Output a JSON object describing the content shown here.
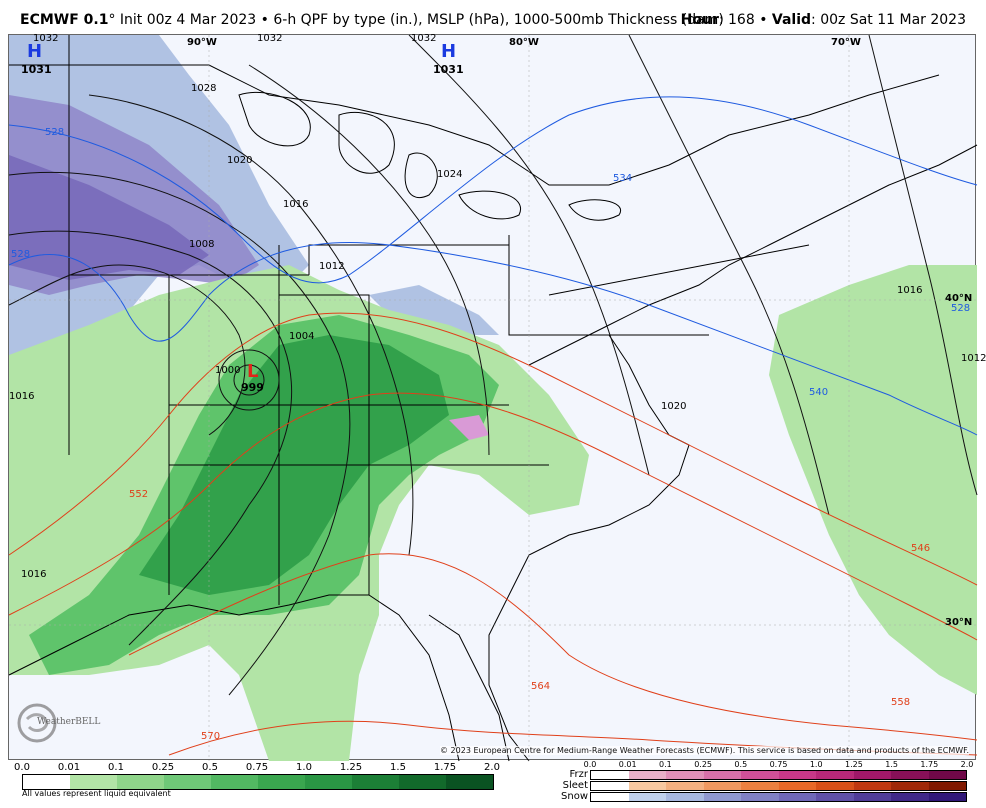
{
  "header": {
    "model": "ECMWF 0.1",
    "degree": "°",
    "description": " Init 00z 4 Mar 2023 • 6-h QPF by type (in.), MSLP (hPa), 1000-500mb Thickness (dam)",
    "hour_label": "Hour",
    "hour_value": ": 168 • ",
    "valid_label": "Valid",
    "valid_value": ": 00z Sat 11 Mar 2023"
  },
  "map": {
    "longitude_labels": [
      "90°W",
      "80°W",
      "70°W"
    ],
    "latitude_labels": [
      "40°N",
      "30°N"
    ],
    "highs": [
      {
        "symbol": "H",
        "pressure": "1031"
      },
      {
        "symbol": "H",
        "pressure": "1031"
      }
    ],
    "low": {
      "symbol": "L",
      "pressure": "999"
    },
    "isobar_labels": [
      "1032",
      "1032",
      "1032",
      "1028",
      "1020",
      "1024",
      "1016",
      "1008",
      "1012",
      "1004",
      "1000",
      "1016",
      "1016",
      "1016",
      "1012",
      "1020"
    ],
    "thickness_labels": [
      "528",
      "528",
      "528",
      "534",
      "540",
      "552",
      "546",
      "564",
      "558",
      "570"
    ],
    "copyright": "© 2023 European Centre for Medium-Range Weather Forecasts (ECMWF). This service is based on data and products of the ECMWF.",
    "logo_text": "WeatherBELL"
  },
  "colors": {
    "background": "#f3f6fd",
    "isobar": "#000000",
    "thickness_low": "#1f5be0",
    "thickness_high": "#e0401a",
    "rain_light": "#b2e4a6",
    "rain_mid": "#5fc46b",
    "rain_heavy": "#2a9b45",
    "snow_light": "#a8bde0",
    "snow_mid": "#8f86c9",
    "snow_heavy": "#7465b8",
    "mix": "#d99ad6"
  },
  "legend_qpf": {
    "ticks": [
      "0.0",
      "0.01",
      "0.1",
      "0.25",
      "0.5",
      "0.75",
      "1.0",
      "1.25",
      "1.5",
      "1.75",
      "2.0"
    ],
    "colors": [
      "#ffffff",
      "#b2e4a6",
      "#8fd58a",
      "#6fc878",
      "#52b862",
      "#3aa64f",
      "#2a9644",
      "#1c7f36",
      "#126a2b",
      "#0a5322"
    ],
    "note": "All values represent liquid equivalent"
  },
  "legend_type": {
    "ticks": [
      "0.0",
      "0.01",
      "0.1",
      "0.25",
      "0.5",
      "0.75",
      "1.0",
      "1.25",
      "1.5",
      "1.75",
      "2.0"
    ],
    "rows": [
      {
        "name": "Frzr",
        "colors": [
          "#ffffff",
          "#e8b0c8",
          "#e090b8",
          "#d870a8",
          "#d05098",
          "#c83888",
          "#b82878",
          "#a01868",
          "#881058",
          "#700848"
        ]
      },
      {
        "name": "Sleet",
        "colors": [
          "#ffffff",
          "#f8c8a0",
          "#f4b080",
          "#f09860",
          "#ec8040",
          "#e86828",
          "#d85018",
          "#c03810",
          "#a02808",
          "#801800"
        ]
      },
      {
        "name": "Snow",
        "colors": [
          "#ffffff",
          "#c0d0ec",
          "#a8b8e0",
          "#9098d0",
          "#8080c4",
          "#7068b8",
          "#6050a8",
          "#503c98",
          "#402888",
          "#301878"
        ]
      }
    ]
  }
}
